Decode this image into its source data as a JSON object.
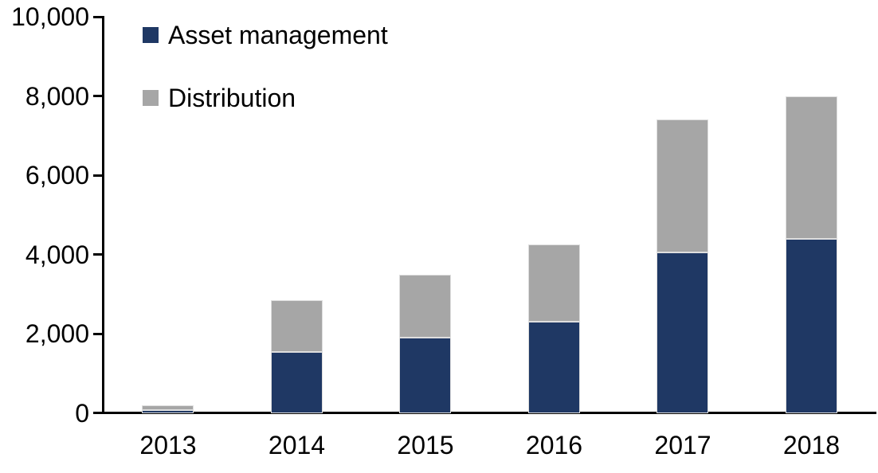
{
  "chart_data": {
    "type": "bar",
    "stacked": true,
    "title": "",
    "categories": [
      "2013",
      "2014",
      "2015",
      "2016",
      "2017",
      "2018"
    ],
    "series": [
      {
        "name": "Asset management",
        "color": "#1f3864",
        "values": [
          80,
          1550,
          1900,
          2300,
          4050,
          4400
        ]
      },
      {
        "name": "Distribution",
        "color": "#a6a6a6",
        "values": [
          120,
          1300,
          1600,
          1950,
          3350,
          3600
        ]
      }
    ],
    "totals": [
      200,
      2850,
      3500,
      4250,
      7400,
      8000
    ],
    "xlabel": "",
    "ylabel": "",
    "ylim": [
      0,
      10000
    ],
    "yticks": {
      "values": [
        0,
        2000,
        4000,
        6000,
        8000,
        10000
      ],
      "labels": [
        "0",
        "2,000",
        "4,000",
        "6,000",
        "8,000",
        "10,000"
      ]
    },
    "grid": false,
    "legend_position": "top-left",
    "axis_color": "#000000",
    "background_color": "#ffffff"
  }
}
